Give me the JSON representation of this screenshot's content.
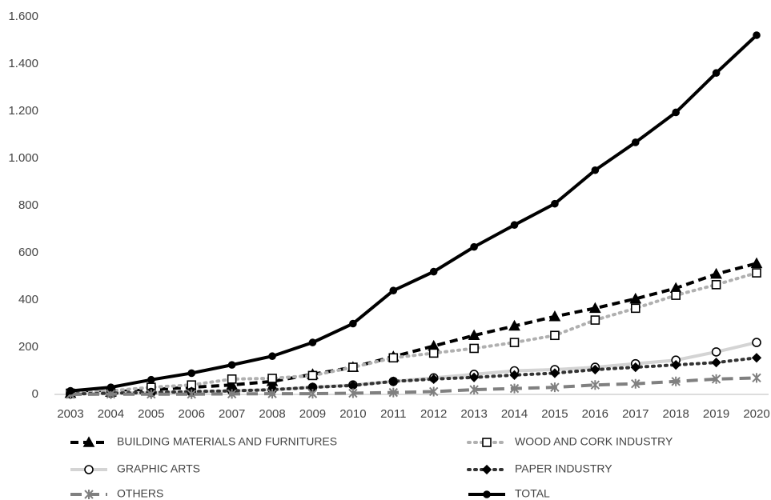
{
  "chart_data": {
    "type": "line",
    "categories": [
      "2003",
      "2004",
      "2005",
      "2006",
      "2007",
      "2008",
      "2009",
      "2010",
      "2011",
      "2012",
      "2013",
      "2014",
      "2015",
      "2016",
      "2017",
      "2018",
      "2019",
      "2020"
    ],
    "ylim": [
      0,
      1600
    ],
    "yticks": [
      0,
      200,
      400,
      600,
      800,
      {
        "value": 1000,
        "label": "1.000"
      },
      {
        "value": 1200,
        "label": "1.200"
      },
      {
        "value": 1400,
        "label": "1.400"
      },
      {
        "value": 1600,
        "label": "1.600"
      }
    ],
    "grid": false,
    "legend": "bottom",
    "series": [
      {
        "name": "BUILDING MATERIALS AND FURNITURES",
        "color": "#000000",
        "dash": "10 6",
        "width": 4,
        "marker": "triangle",
        "marker_fill": "#000000",
        "values": [
          5,
          10,
          20,
          30,
          40,
          55,
          85,
          115,
          160,
          205,
          250,
          290,
          330,
          365,
          405,
          450,
          510,
          555
        ]
      },
      {
        "name": "WOOD AND CORK INDUSTRY",
        "color": "#b0b0b0",
        "dash": "2 6",
        "width": 4,
        "marker": "square",
        "marker_fill": "#ffffff",
        "values": [
          5,
          15,
          30,
          40,
          65,
          68,
          80,
          115,
          155,
          175,
          195,
          220,
          250,
          315,
          365,
          420,
          465,
          515
        ]
      },
      {
        "name": "GRAPHIC ARTS",
        "color": "#d4d4d4",
        "dash": "none",
        "width": 4,
        "marker": "circle",
        "marker_fill": "#ffffff",
        "values": [
          2,
          5,
          8,
          10,
          15,
          20,
          30,
          40,
          55,
          70,
          85,
          100,
          105,
          115,
          130,
          145,
          180,
          220
        ]
      },
      {
        "name": "PAPER INDUSTRY",
        "color": "#333333",
        "dash": "2 6",
        "width": 4,
        "marker": "diamond",
        "marker_fill": "#000000",
        "values": [
          2,
          5,
          8,
          12,
          15,
          20,
          30,
          38,
          55,
          65,
          72,
          82,
          90,
          105,
          115,
          125,
          135,
          155
        ]
      },
      {
        "name": "OTHERS",
        "color": "#808080",
        "dash": "14 8",
        "width": 4,
        "marker": "asterisk",
        "marker_fill": "#808080",
        "values": [
          0,
          1,
          1,
          1,
          2,
          3,
          3,
          5,
          8,
          12,
          20,
          25,
          30,
          40,
          45,
          55,
          65,
          70
        ]
      },
      {
        "name": "TOTAL",
        "color": "#000000",
        "dash": "none",
        "width": 4,
        "marker": "dot",
        "marker_fill": "#000000",
        "values": [
          15,
          30,
          62,
          90,
          125,
          162,
          220,
          300,
          440,
          520,
          625,
          718,
          808,
          950,
          1068,
          1195,
          1362,
          1522
        ]
      }
    ]
  }
}
